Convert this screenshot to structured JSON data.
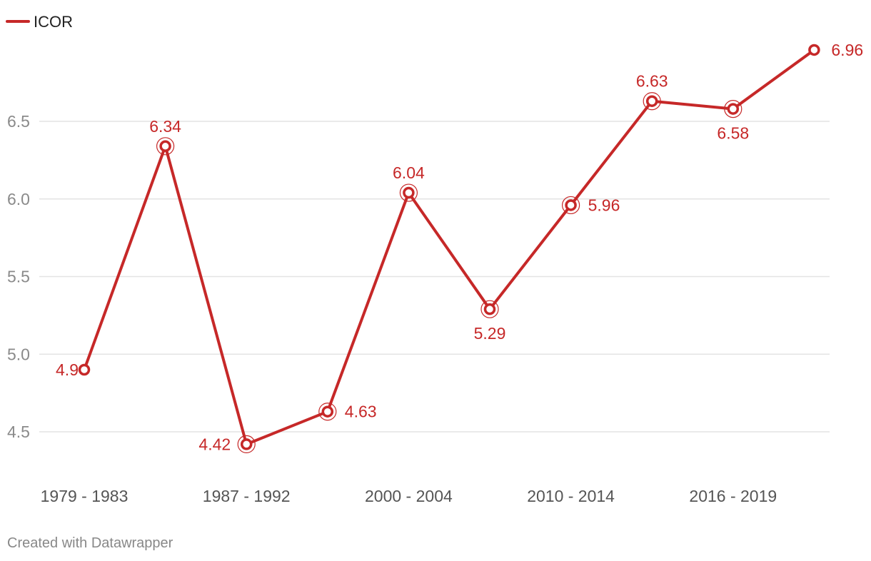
{
  "chart_data": {
    "type": "line",
    "title": "",
    "xlabel": "",
    "ylabel": "",
    "categories": [
      "1979 - 1983",
      "",
      "1987 - 1992",
      "",
      "2000 - 2004",
      "",
      "2010 - 2014",
      "",
      "2016 - 2019",
      ""
    ],
    "series": [
      {
        "name": "ICOR",
        "color": "#c62828",
        "values": [
          4.9,
          6.34,
          4.42,
          4.63,
          6.04,
          5.29,
          5.96,
          6.63,
          6.58,
          6.96
        ]
      }
    ],
    "y_ticks": [
      "4.5",
      "5.0",
      "5.5",
      "6.0",
      "6.5"
    ],
    "ylim": [
      4.0,
      7.0
    ],
    "grid": "horizontal",
    "legend": "top-left",
    "x_tick_labels": [
      "1979 - 1983",
      "1987 - 1992",
      "2000 - 2004",
      "2010 - 2014",
      "2016 - 2019"
    ],
    "x_tick_indices": [
      0,
      2,
      4,
      6,
      8
    ],
    "data_labels": [
      "4.9",
      "6.34",
      "4.42",
      "4.63",
      "6.04",
      "5.29",
      "5.96",
      "6.63",
      "6.58",
      "6.96"
    ]
  },
  "footer": {
    "credit": "Created with Datawrapper"
  }
}
